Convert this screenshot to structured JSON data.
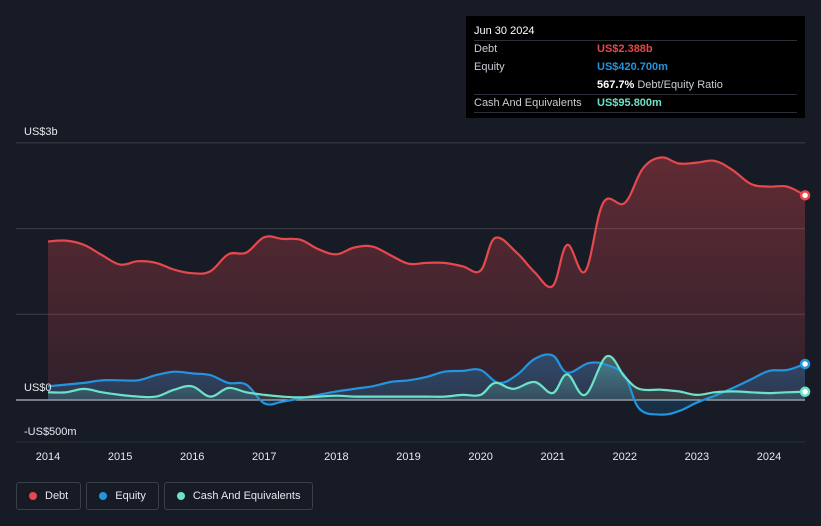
{
  "tooltip": {
    "date": "Jun 30 2024",
    "rows": [
      {
        "label": "Debt",
        "value": "US$2.388b",
        "color": "#e5484d"
      },
      {
        "label": "Equity",
        "value": "US$420.700m",
        "color": "#2394df"
      },
      {
        "label": "",
        "value": "567.7%",
        "suffix": "Debt/Equity Ratio"
      },
      {
        "label": "Cash And Equivalents",
        "value": "US$95.800m",
        "color": "#6ce3c9"
      }
    ]
  },
  "legend": [
    {
      "label": "Debt",
      "color": "#e5484d"
    },
    {
      "label": "Equity",
      "color": "#2394df"
    },
    {
      "label": "Cash And Equivalents",
      "color": "#6ce3c9"
    }
  ],
  "chart_data": {
    "type": "area",
    "y_axis_labels": [
      "US$3b",
      "US$0",
      "-US$500m"
    ],
    "x_tick_labels": [
      "2014",
      "2015",
      "2016",
      "2017",
      "2018",
      "2019",
      "2020",
      "2021",
      "2022",
      "2023",
      "2024"
    ],
    "ylim": [
      -500,
      3000
    ],
    "grid_values": [
      3000,
      2000,
      1000,
      0
    ],
    "units": "US$ millions",
    "series": [
      {
        "name": "Debt",
        "color": "#e5484d",
        "points": [
          [
            2014.0,
            1850
          ],
          [
            2014.25,
            1860
          ],
          [
            2014.5,
            1810
          ],
          [
            2014.75,
            1690
          ],
          [
            2015.0,
            1580
          ],
          [
            2015.25,
            1620
          ],
          [
            2015.5,
            1600
          ],
          [
            2015.75,
            1520
          ],
          [
            2016.0,
            1480
          ],
          [
            2016.25,
            1500
          ],
          [
            2016.5,
            1700
          ],
          [
            2016.75,
            1720
          ],
          [
            2017.0,
            1900
          ],
          [
            2017.25,
            1880
          ],
          [
            2017.5,
            1870
          ],
          [
            2017.75,
            1760
          ],
          [
            2018.0,
            1700
          ],
          [
            2018.25,
            1780
          ],
          [
            2018.5,
            1790
          ],
          [
            2018.75,
            1690
          ],
          [
            2019.0,
            1590
          ],
          [
            2019.25,
            1600
          ],
          [
            2019.5,
            1600
          ],
          [
            2019.75,
            1560
          ],
          [
            2020.0,
            1510
          ],
          [
            2020.2,
            1890
          ],
          [
            2020.5,
            1720
          ],
          [
            2020.75,
            1490
          ],
          [
            2021.0,
            1330
          ],
          [
            2021.2,
            1810
          ],
          [
            2021.45,
            1500
          ],
          [
            2021.7,
            2300
          ],
          [
            2022.0,
            2300
          ],
          [
            2022.25,
            2700
          ],
          [
            2022.5,
            2830
          ],
          [
            2022.75,
            2760
          ],
          [
            2023.0,
            2770
          ],
          [
            2023.25,
            2790
          ],
          [
            2023.5,
            2680
          ],
          [
            2023.75,
            2520
          ],
          [
            2024.0,
            2490
          ],
          [
            2024.25,
            2490
          ],
          [
            2024.5,
            2388
          ]
        ]
      },
      {
        "name": "Equity",
        "color": "#2394df",
        "points": [
          [
            2014.0,
            160
          ],
          [
            2014.25,
            180
          ],
          [
            2014.5,
            200
          ],
          [
            2014.75,
            230
          ],
          [
            2015.0,
            230
          ],
          [
            2015.25,
            230
          ],
          [
            2015.5,
            290
          ],
          [
            2015.75,
            330
          ],
          [
            2016.0,
            310
          ],
          [
            2016.25,
            290
          ],
          [
            2016.5,
            200
          ],
          [
            2016.75,
            180
          ],
          [
            2017.0,
            -40
          ],
          [
            2017.25,
            -20
          ],
          [
            2017.5,
            20
          ],
          [
            2017.75,
            60
          ],
          [
            2018.0,
            100
          ],
          [
            2018.25,
            130
          ],
          [
            2018.5,
            160
          ],
          [
            2018.75,
            210
          ],
          [
            2019.0,
            230
          ],
          [
            2019.25,
            270
          ],
          [
            2019.5,
            330
          ],
          [
            2019.75,
            340
          ],
          [
            2020.0,
            350
          ],
          [
            2020.25,
            200
          ],
          [
            2020.5,
            290
          ],
          [
            2020.75,
            480
          ],
          [
            2021.0,
            520
          ],
          [
            2021.2,
            320
          ],
          [
            2021.5,
            430
          ],
          [
            2021.75,
            410
          ],
          [
            2022.0,
            280
          ],
          [
            2022.2,
            -100
          ],
          [
            2022.5,
            -170
          ],
          [
            2022.75,
            -130
          ],
          [
            2023.0,
            -30
          ],
          [
            2023.25,
            50
          ],
          [
            2023.5,
            140
          ],
          [
            2023.75,
            240
          ],
          [
            2024.0,
            340
          ],
          [
            2024.25,
            350
          ],
          [
            2024.5,
            420.7
          ]
        ]
      },
      {
        "name": "Cash And Equivalents",
        "color": "#6ce3c9",
        "points": [
          [
            2014.0,
            90
          ],
          [
            2014.25,
            90
          ],
          [
            2014.5,
            130
          ],
          [
            2014.75,
            90
          ],
          [
            2015.0,
            60
          ],
          [
            2015.25,
            40
          ],
          [
            2015.5,
            40
          ],
          [
            2015.75,
            120
          ],
          [
            2016.0,
            160
          ],
          [
            2016.25,
            40
          ],
          [
            2016.5,
            140
          ],
          [
            2016.75,
            90
          ],
          [
            2017.0,
            60
          ],
          [
            2017.25,
            40
          ],
          [
            2017.5,
            30
          ],
          [
            2017.75,
            40
          ],
          [
            2018.0,
            50
          ],
          [
            2018.25,
            40
          ],
          [
            2018.5,
            40
          ],
          [
            2018.75,
            40
          ],
          [
            2019.0,
            40
          ],
          [
            2019.25,
            40
          ],
          [
            2019.5,
            40
          ],
          [
            2019.75,
            60
          ],
          [
            2020.0,
            60
          ],
          [
            2020.2,
            200
          ],
          [
            2020.45,
            130
          ],
          [
            2020.75,
            210
          ],
          [
            2021.0,
            80
          ],
          [
            2021.2,
            300
          ],
          [
            2021.45,
            60
          ],
          [
            2021.75,
            510
          ],
          [
            2022.0,
            270
          ],
          [
            2022.2,
            130
          ],
          [
            2022.5,
            120
          ],
          [
            2022.75,
            100
          ],
          [
            2023.0,
            60
          ],
          [
            2023.25,
            90
          ],
          [
            2023.5,
            100
          ],
          [
            2023.75,
            90
          ],
          [
            2024.0,
            80
          ],
          [
            2024.25,
            90
          ],
          [
            2024.5,
            95.8
          ]
        ]
      }
    ]
  }
}
